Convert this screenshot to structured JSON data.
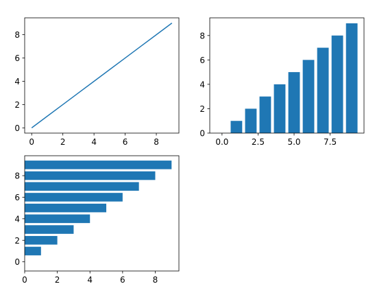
{
  "colors": {
    "series": "#1f77b4",
    "axis": "#000000",
    "background": "#ffffff"
  },
  "chart_data": [
    {
      "type": "line",
      "x": [
        0,
        1,
        2,
        3,
        4,
        5,
        6,
        7,
        8,
        9
      ],
      "y": [
        0,
        1,
        2,
        3,
        4,
        5,
        6,
        7,
        8,
        9
      ],
      "xlim": [
        -0.45,
        9.45
      ],
      "ylim": [
        -0.45,
        9.45
      ],
      "xticks": [
        0,
        2,
        4,
        6,
        8
      ],
      "yticks": [
        0,
        2,
        4,
        6,
        8
      ],
      "xtick_labels": [
        "0",
        "2",
        "4",
        "6",
        "8"
      ],
      "ytick_labels": [
        "0",
        "2",
        "4",
        "6",
        "8"
      ],
      "grid": false
    },
    {
      "type": "bar",
      "x": [
        0,
        1,
        2,
        3,
        4,
        5,
        6,
        7,
        8,
        9
      ],
      "values": [
        0,
        1,
        2,
        3,
        4,
        5,
        6,
        7,
        8,
        9
      ],
      "bar_width": 0.8,
      "xlim": [
        -0.85,
        9.85
      ],
      "ylim": [
        0,
        9.45
      ],
      "xticks": [
        0,
        2.5,
        5,
        7.5
      ],
      "yticks": [
        0,
        2,
        4,
        6,
        8
      ],
      "xtick_labels": [
        "0.0",
        "2.5",
        "5.0",
        "7.5"
      ],
      "ytick_labels": [
        "0",
        "2",
        "4",
        "6",
        "8"
      ],
      "grid": false
    },
    {
      "type": "bar",
      "orientation": "horizontal",
      "y": [
        0,
        1,
        2,
        3,
        4,
        5,
        6,
        7,
        8,
        9
      ],
      "values": [
        0,
        1,
        2,
        3,
        4,
        5,
        6,
        7,
        8,
        9
      ],
      "bar_height": 0.8,
      "xlim": [
        0,
        9.45
      ],
      "ylim": [
        -0.85,
        9.85
      ],
      "xticks": [
        0,
        2,
        4,
        6,
        8
      ],
      "yticks": [
        0,
        2,
        4,
        6,
        8
      ],
      "xtick_labels": [
        "0",
        "2",
        "4",
        "6",
        "8"
      ],
      "ytick_labels": [
        "0",
        "2",
        "4",
        "6",
        "8"
      ],
      "grid": false
    }
  ]
}
